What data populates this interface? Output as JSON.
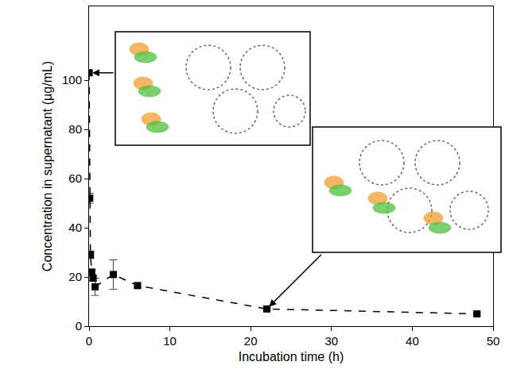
{
  "chart_data": {
    "type": "scatter",
    "x_label": "Incubation time (h)",
    "y_label": "Concentration in supernatant (µg/mL)",
    "x": [
      0,
      0.08,
      0.17,
      0.33,
      0.5,
      0.75,
      3,
      6,
      22,
      48
    ],
    "values": [
      103,
      52,
      29,
      22,
      19.5,
      16,
      21,
      16.5,
      7,
      5
    ],
    "errors": [
      1,
      2,
      1.5,
      1,
      1,
      3.5,
      6,
      0.8,
      0.5,
      0.5
    ],
    "color": "#000000",
    "marker": "square",
    "line_style": "dashed",
    "xlim": [
      0,
      50
    ],
    "xticks": [
      0,
      10,
      20,
      30,
      40,
      50
    ],
    "ylim": [
      0,
      130
    ],
    "yticks": [
      0,
      20,
      40,
      60,
      80,
      100
    ],
    "grid": false
  }
}
